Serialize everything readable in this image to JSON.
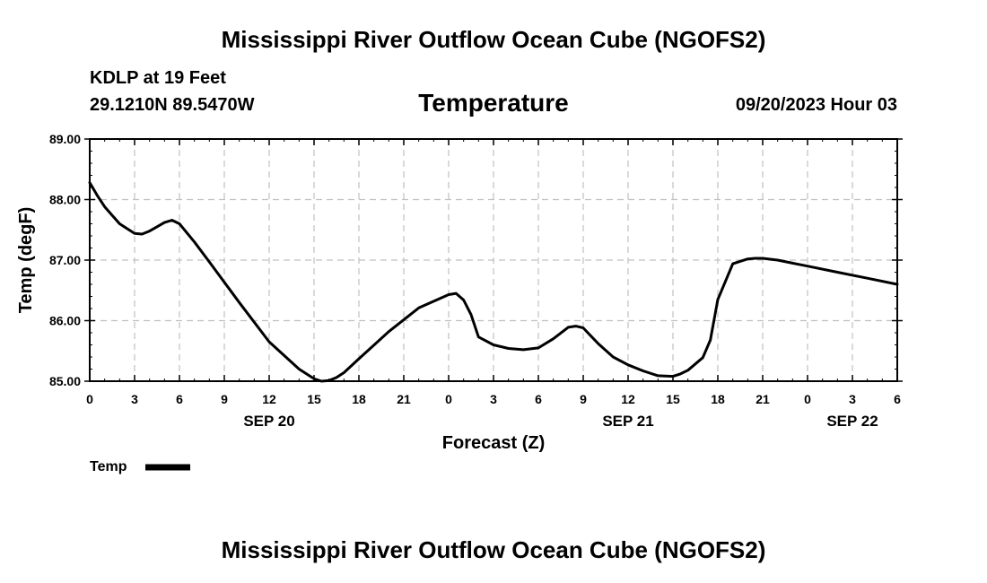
{
  "chart_data": {
    "type": "line",
    "title": "Mississippi River Outflow Ocean Cube (NGOFS2)",
    "footer_title": "Mississippi River Outflow Ocean Cube (NGOFS2)",
    "subtitle": "Temperature",
    "station": "KDLP at 19 Feet",
    "location": "29.1210N  89.5470W",
    "datetime": "09/20/2023 Hour 03",
    "xlabel": "Forecast (Z)",
    "ylabel": "Temp (degF)",
    "xlim": [
      0,
      54
    ],
    "ylim": [
      85.0,
      89.0
    ],
    "x_ticks": [
      0,
      3,
      6,
      9,
      12,
      15,
      18,
      21,
      24,
      27,
      30,
      33,
      36,
      39,
      42,
      45,
      48,
      51,
      54
    ],
    "x_tick_labels": [
      "0",
      "3",
      "6",
      "9",
      "12",
      "15",
      "18",
      "21",
      "0",
      "3",
      "6",
      "9",
      "12",
      "15",
      "18",
      "21",
      "0",
      "3",
      "6"
    ],
    "y_ticks": [
      85.0,
      86.0,
      87.0,
      88.0,
      89.0
    ],
    "y_tick_labels": [
      "85.00",
      "86.00",
      "87.00",
      "88.00",
      "89.00"
    ],
    "day_labels": [
      {
        "x": 12,
        "label": "SEP 20"
      },
      {
        "x": 36,
        "label": "SEP 21"
      },
      {
        "x": 51,
        "label": "SEP 22"
      }
    ],
    "grid": true,
    "series": [
      {
        "name": "Temp",
        "x": [
          0,
          0.5,
          1,
          2,
          3,
          3.5,
          4,
          5,
          5.5,
          6,
          7,
          8,
          10,
          12,
          14,
          15,
          15.5,
          16,
          16.5,
          17,
          18,
          20,
          22,
          24,
          24.5,
          25,
          25.5,
          26,
          27,
          28,
          29,
          30,
          31,
          32,
          32.5,
          33,
          34,
          35,
          36,
          37,
          38,
          39,
          39.5,
          40,
          41,
          41.5,
          42,
          43,
          44,
          44.5,
          45,
          46,
          47,
          48,
          50,
          52,
          54
        ],
        "values": [
          88.28,
          88.07,
          87.88,
          87.6,
          87.44,
          87.43,
          87.48,
          87.62,
          87.66,
          87.6,
          87.3,
          86.97,
          86.3,
          85.65,
          85.2,
          85.04,
          85.0,
          85.01,
          85.06,
          85.14,
          85.37,
          85.82,
          86.21,
          86.43,
          86.45,
          86.34,
          86.1,
          85.73,
          85.6,
          85.54,
          85.52,
          85.55,
          85.7,
          85.89,
          85.91,
          85.88,
          85.62,
          85.4,
          85.27,
          85.17,
          85.09,
          85.08,
          85.12,
          85.18,
          85.39,
          85.68,
          86.35,
          86.94,
          87.02,
          87.03,
          87.03,
          87.0,
          86.95,
          86.9,
          86.8,
          86.7,
          86.6
        ]
      }
    ],
    "legend": {
      "label": "Temp",
      "placement": "bottom-left"
    }
  }
}
